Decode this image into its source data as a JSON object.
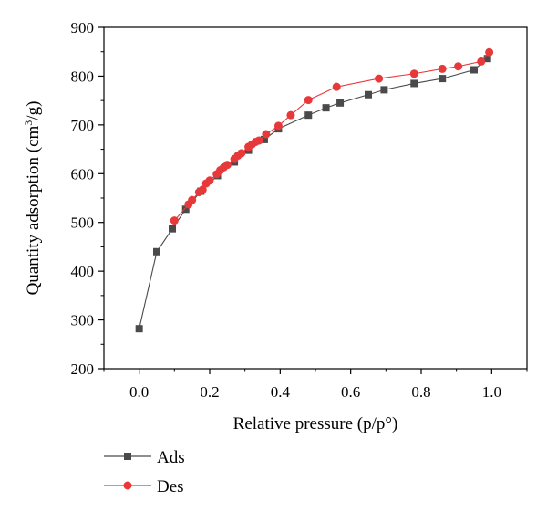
{
  "chart_data": {
    "type": "line",
    "xlabel": "Relative pressure (p/p°)",
    "ylabel_main": "Quantity adsorption (cm",
    "ylabel_sup": "3",
    "ylabel_end": "/g)",
    "xlim": [
      -0.1,
      1.1
    ],
    "ylim": [
      200,
      900
    ],
    "x_ticks": [
      0.0,
      0.2,
      0.4,
      0.6,
      0.8,
      1.0
    ],
    "x_tick_labels": [
      "0.0",
      "0.2",
      "0.4",
      "0.6",
      "0.8",
      "1.0"
    ],
    "y_ticks": [
      200,
      300,
      400,
      500,
      600,
      700,
      800,
      900
    ],
    "y_tick_labels": [
      "200",
      "300",
      "400",
      "500",
      "600",
      "700",
      "800",
      "900"
    ],
    "grid": false,
    "legend_position": "bottom-left",
    "series": [
      {
        "name": "Ads",
        "color": "#4a4a4a",
        "marker": "square",
        "x": [
          0.0,
          0.05,
          0.094,
          0.132,
          0.175,
          0.222,
          0.27,
          0.31,
          0.355,
          0.395,
          0.48,
          0.53,
          0.57,
          0.65,
          0.695,
          0.78,
          0.86,
          0.95,
          0.988
        ],
        "y": [
          282,
          440,
          487,
          527,
          564,
          596,
          624,
          648,
          670,
          692,
          720,
          735,
          745,
          762,
          772,
          785,
          795,
          813,
          836
        ]
      },
      {
        "name": "Des",
        "color": "#e8393a",
        "marker": "circle",
        "x": [
          0.1,
          0.14,
          0.15,
          0.17,
          0.18,
          0.19,
          0.2,
          0.22,
          0.23,
          0.24,
          0.25,
          0.27,
          0.28,
          0.29,
          0.31,
          0.32,
          0.33,
          0.34,
          0.36,
          0.395,
          0.43,
          0.48,
          0.56,
          0.68,
          0.78,
          0.86,
          0.905,
          0.97,
          0.993
        ],
        "y": [
          504,
          537,
          546,
          562,
          567,
          580,
          586,
          599,
          607,
          613,
          618,
          630,
          637,
          642,
          655,
          660,
          665,
          668,
          681,
          698,
          720,
          751,
          778,
          795,
          805,
          815,
          820,
          830,
          849
        ]
      }
    ]
  }
}
